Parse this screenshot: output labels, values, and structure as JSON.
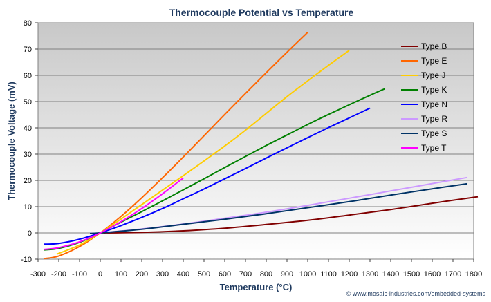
{
  "chart_data": {
    "type": "line",
    "title": "Thermocouple Potential vs Temperature",
    "xlabel": "Temperature (°C)",
    "ylabel": "Thermocouple Voltage (mV)",
    "xlim": [
      -300,
      1800
    ],
    "ylim": [
      -10,
      80
    ],
    "xticks": [
      -300,
      -200,
      -100,
      0,
      100,
      200,
      300,
      400,
      500,
      600,
      700,
      800,
      900,
      1000,
      1100,
      1200,
      1300,
      1400,
      1500,
      1600,
      1700,
      1800
    ],
    "yticks": [
      -10,
      0,
      10,
      20,
      30,
      40,
      50,
      60,
      70,
      80
    ],
    "grid": true,
    "legend_position": "right",
    "footer": "© www.mosaic-industries.com/embedded-systems",
    "series": [
      {
        "name": "Type B",
        "color": "#800000",
        "x": [
          0,
          200,
          400,
          600,
          800,
          1000,
          1200,
          1400,
          1600,
          1820
        ],
        "y": [
          0,
          0.2,
          0.8,
          1.8,
          3.2,
          4.8,
          6.8,
          8.9,
          11.3,
          13.8
        ]
      },
      {
        "name": "Type E",
        "color": "#ff6600",
        "x": [
          -270,
          -200,
          -100,
          0,
          100,
          200,
          300,
          400,
          500,
          600,
          700,
          800,
          900,
          1000
        ],
        "y": [
          -9.8,
          -8.8,
          -5.2,
          0,
          6.3,
          13.4,
          21.0,
          28.9,
          37.0,
          45.1,
          53.1,
          61.0,
          68.8,
          76.4
        ]
      },
      {
        "name": "Type J",
        "color": "#ffcc00",
        "x": [
          -210,
          -100,
          0,
          100,
          200,
          300,
          400,
          500,
          600,
          700,
          800,
          900,
          1000,
          1100,
          1200
        ],
        "y": [
          -8.1,
          -4.6,
          0,
          5.3,
          10.8,
          16.3,
          21.8,
          27.4,
          33.1,
          39.1,
          45.5,
          51.9,
          57.9,
          63.8,
          69.5
        ]
      },
      {
        "name": "Type K",
        "color": "#008000",
        "x": [
          -270,
          -200,
          -100,
          0,
          100,
          200,
          300,
          400,
          500,
          600,
          700,
          800,
          900,
          1000,
          1100,
          1200,
          1300,
          1372
        ],
        "y": [
          -6.5,
          -5.9,
          -3.6,
          0,
          4.1,
          8.1,
          12.2,
          16.4,
          20.6,
          24.9,
          29.1,
          33.3,
          37.3,
          41.3,
          45.1,
          48.8,
          52.4,
          54.9
        ]
      },
      {
        "name": "Type N",
        "color": "#0000ff",
        "x": [
          -270,
          -200,
          -100,
          0,
          100,
          200,
          300,
          400,
          500,
          600,
          700,
          800,
          900,
          1000,
          1100,
          1200,
          1300
        ],
        "y": [
          -4.3,
          -4.0,
          -2.4,
          0,
          2.8,
          5.9,
          9.3,
          13.0,
          16.7,
          20.6,
          24.5,
          28.5,
          32.4,
          36.3,
          40.1,
          43.8,
          47.5
        ]
      },
      {
        "name": "Type R",
        "color": "#cc99ff",
        "x": [
          -50,
          0,
          200,
          400,
          600,
          800,
          1000,
          1200,
          1400,
          1600,
          1768
        ],
        "y": [
          -0.2,
          0,
          1.5,
          3.4,
          5.6,
          7.9,
          10.5,
          13.2,
          16.0,
          18.8,
          21.1
        ]
      },
      {
        "name": "Type S",
        "color": "#003366",
        "x": [
          -50,
          0,
          200,
          400,
          600,
          800,
          1000,
          1200,
          1400,
          1600,
          1768
        ],
        "y": [
          -0.2,
          0,
          1.4,
          3.3,
          5.2,
          7.3,
          9.6,
          11.9,
          14.4,
          16.8,
          18.7
        ]
      },
      {
        "name": "Type T",
        "color": "#ff00ff",
        "x": [
          -270,
          -200,
          -100,
          0,
          100,
          200,
          300,
          400
        ],
        "y": [
          -6.3,
          -5.6,
          -3.4,
          0,
          4.3,
          9.3,
          14.9,
          20.9
        ]
      }
    ]
  }
}
